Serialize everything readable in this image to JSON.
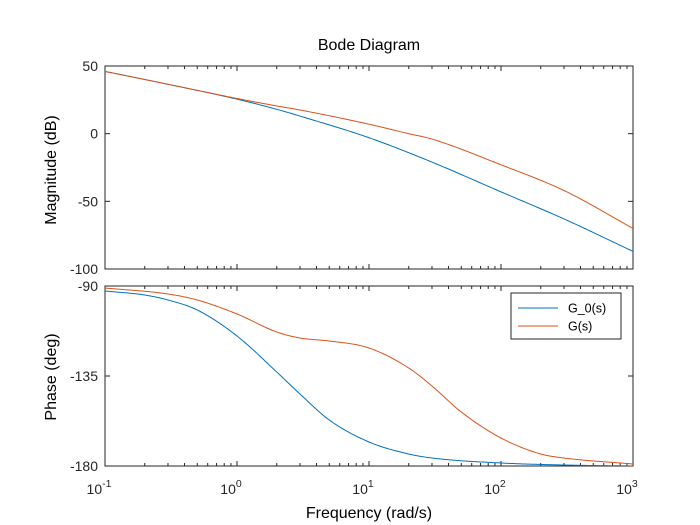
{
  "chart_data": {
    "type": "line",
    "title": "Bode Diagram",
    "xlabel": "Frequency  (rad/s)",
    "x_scale": "log",
    "xlim": [
      0.1,
      1000
    ],
    "x_ticks": [
      {
        "base": "10",
        "exp": "-1"
      },
      {
        "base": "10",
        "exp": "0"
      },
      {
        "base": "10",
        "exp": "1"
      },
      {
        "base": "10",
        "exp": "2"
      },
      {
        "base": "10",
        "exp": "3"
      }
    ],
    "colors": {
      "G_0(s)": "#0072BD",
      "G(s)": "#D95319",
      "axes": "#262626"
    },
    "legend_placement": "top-right",
    "grid": false,
    "magnitude": {
      "ylabel": "Magnitude (dB)",
      "ylim": [
        -100,
        50
      ],
      "y_ticks": [
        "50",
        "0",
        "-50",
        "-100"
      ],
      "series": [
        {
          "name": "G_0(s)",
          "x": [
            0.1,
            0.3,
            1,
            2,
            3,
            10,
            30,
            100,
            300,
            1000
          ],
          "values": [
            46,
            36.5,
            25.5,
            18,
            13,
            -3,
            -21,
            -43,
            -63,
            -87
          ]
        },
        {
          "name": "G(s)",
          "x": [
            0.1,
            0.3,
            1,
            2,
            3,
            10,
            20,
            30,
            100,
            300,
            1000
          ],
          "values": [
            46,
            36.5,
            26,
            20.5,
            17.5,
            7,
            0,
            -4,
            -23,
            -42,
            -70
          ]
        }
      ]
    },
    "phase": {
      "ylabel": "Phase (deg)",
      "ylim": [
        -180,
        -90
      ],
      "y_ticks": [
        "-90",
        "-135",
        "-180"
      ],
      "series": [
        {
          "name": "G_0(s)",
          "x": [
            0.1,
            0.2,
            0.3,
            0.5,
            1,
            2,
            3,
            5,
            10,
            20,
            30,
            100,
            300,
            1000
          ],
          "values": [
            -92.5,
            -94.5,
            -97,
            -102,
            -115,
            -133,
            -144,
            -157,
            -168,
            -174,
            -176,
            -178.5,
            -179.5,
            -180
          ]
        },
        {
          "name": "G(s)",
          "x": [
            0.1,
            0.3,
            0.5,
            1,
            2,
            3,
            5,
            10,
            20,
            30,
            50,
            100,
            200,
            300,
            1000
          ],
          "values": [
            -91,
            -94,
            -97,
            -104,
            -113,
            -116,
            -117.5,
            -121,
            -131,
            -140,
            -153,
            -166,
            -174,
            -176,
            -179
          ]
        }
      ]
    }
  }
}
